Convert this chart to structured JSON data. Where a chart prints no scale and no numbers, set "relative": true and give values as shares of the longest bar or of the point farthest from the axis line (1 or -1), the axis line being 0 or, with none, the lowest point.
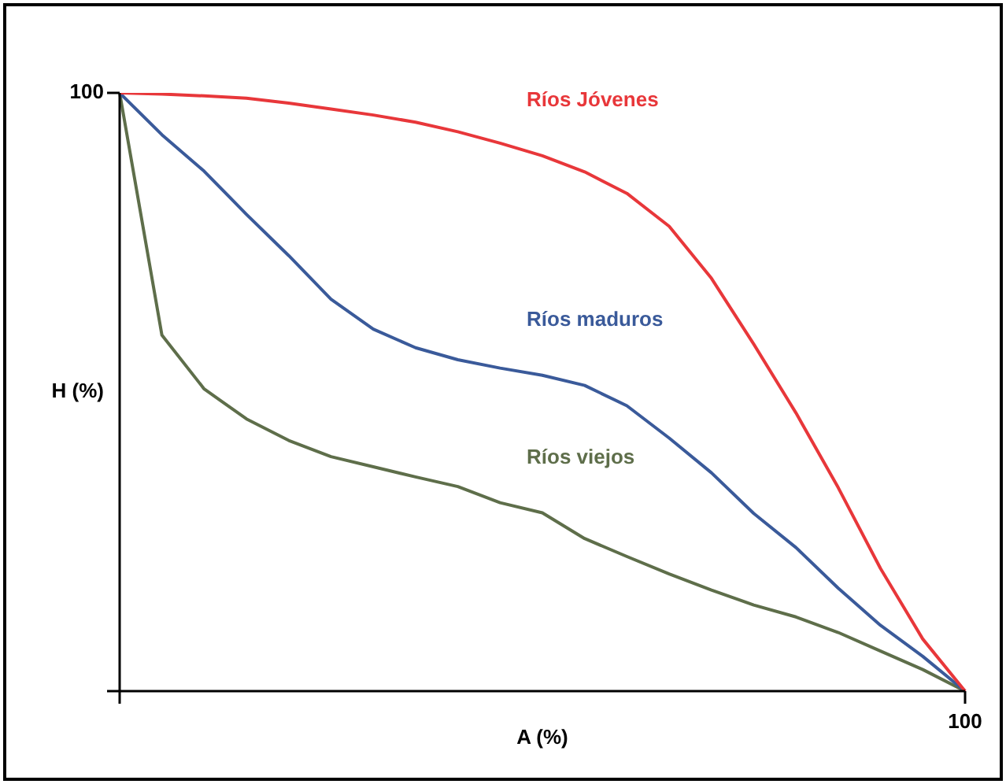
{
  "chart_data": {
    "type": "line",
    "relative": true,
    "xlabel": "A (%)",
    "ylabel": "H (%)",
    "legend": false,
    "marker": "none",
    "line_style": "solid",
    "annotations": [
      "100",
      "100"
    ],
    "categories": [
      null,
      null,
      null,
      null,
      null,
      null,
      null,
      null,
      null,
      null,
      null,
      null,
      null,
      null,
      null,
      null,
      null,
      null,
      null,
      null,
      null
    ],
    "series": [
      {
        "name": "Ríos Jóvenes",
        "color": "#e8373a",
        "values": [
          1,
          0.998,
          0.995,
          0.991,
          0.983,
          0.973,
          0.963,
          0.951,
          0.935,
          0.916,
          0.895,
          0.868,
          0.832,
          0.777,
          0.69,
          0.58,
          0.465,
          0.34,
          0.205,
          0.087,
          0
        ]
      },
      {
        "name": "Ríos maduros",
        "color": "#3a5a9a",
        "values": [
          1,
          0.93,
          0.869,
          0.797,
          0.728,
          0.655,
          0.605,
          0.574,
          0.554,
          0.54,
          0.528,
          0.511,
          0.477,
          0.423,
          0.365,
          0.297,
          0.24,
          0.172,
          0.11,
          0.058,
          0
        ]
      },
      {
        "name": "Ríos viejos",
        "color": "#5e6e4a",
        "values": [
          1,
          0.595,
          0.505,
          0.455,
          0.419,
          0.392,
          0.375,
          0.358,
          0.342,
          0.315,
          0.298,
          0.255,
          0.225,
          0.196,
          0.169,
          0.144,
          0.124,
          0.098,
          0.067,
          0.036,
          0
        ]
      }
    ]
  }
}
